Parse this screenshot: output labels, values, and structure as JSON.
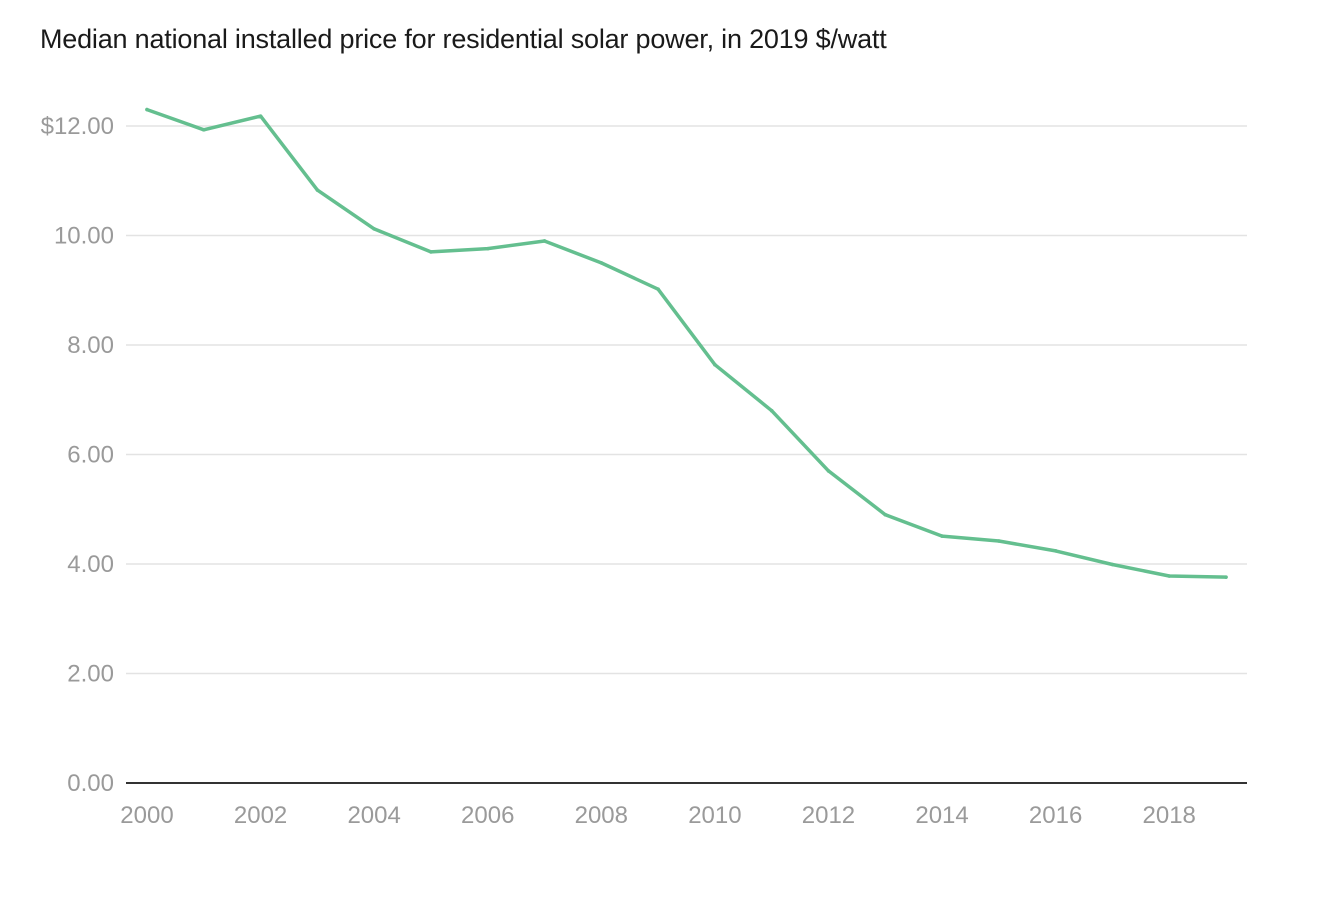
{
  "chart_data": {
    "type": "line",
    "title": "Median national installed price for residential solar power, in 2019 $/watt",
    "xlabel": "",
    "ylabel": "",
    "x": [
      2000,
      2001,
      2002,
      2003,
      2004,
      2005,
      2006,
      2007,
      2008,
      2009,
      2010,
      2011,
      2012,
      2013,
      2014,
      2015,
      2016,
      2017,
      2018,
      2019
    ],
    "series": [
      {
        "values": [
          12.3,
          11.93,
          12.18,
          10.83,
          10.12,
          9.7,
          9.76,
          9.9,
          9.5,
          9.02,
          7.64,
          6.8,
          5.7,
          4.9,
          4.51,
          4.42,
          4.24,
          3.99,
          3.78,
          3.76
        ],
        "color": "#64bf8f"
      }
    ],
    "xlim": [
      2000,
      2019
    ],
    "ylim": [
      0,
      12
    ],
    "x_ticks": [
      2000,
      2002,
      2004,
      2006,
      2008,
      2010,
      2012,
      2014,
      2016,
      2018
    ],
    "x_tick_labels": [
      "2000",
      "2002",
      "2004",
      "2006",
      "2008",
      "2010",
      "2012",
      "2014",
      "2016",
      "2018"
    ],
    "y_ticks": [
      0,
      2,
      4,
      6,
      8,
      10,
      12
    ],
    "y_tick_labels": [
      "0.00",
      "2.00",
      "4.00",
      "6.00",
      "8.00",
      "10.00",
      "$12.00"
    ],
    "grid": "horizontal",
    "legend": "none"
  }
}
